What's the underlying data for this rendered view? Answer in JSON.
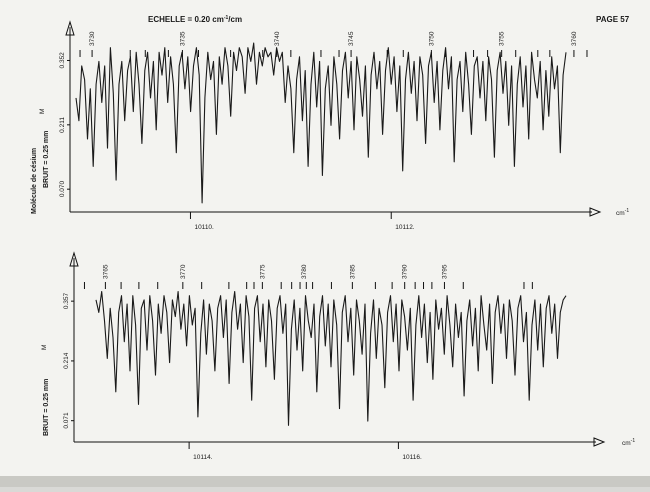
{
  "header": {
    "scale_prefix": "ECHELLE = 0.20 cm",
    "scale_exp": "-1",
    "scale_suffix": "/cm",
    "page_label": "PAGE 57"
  },
  "chart_data": [
    {
      "type": "line",
      "xlabel": "cm",
      "xlabel_sup": "-1",
      "x_ticks": [
        {
          "value": 10110.0,
          "label": "10110."
        },
        {
          "value": 10112.0,
          "label": "10112."
        }
      ],
      "xlim": [
        10108.8,
        10114.0
      ],
      "ylabel": "Molécule de césium",
      "noise_label": "BRUIT = 0.25 mm",
      "y_ticks": [
        {
          "value": 0.07,
          "label": "0.070"
        },
        {
          "value": 0.211,
          "label": "0.211"
        },
        {
          "value": 0.352,
          "label": "0.352"
        }
      ],
      "y_marker": "M",
      "ylim": [
        0.02,
        0.41
      ],
      "annotation_labels": [
        {
          "x": 10109.02,
          "text": "3730"
        },
        {
          "x": 10109.92,
          "text": "3735"
        },
        {
          "x": 10110.86,
          "text": "3740"
        },
        {
          "x": 10111.6,
          "text": "3745"
        },
        {
          "x": 10112.4,
          "text": "3750"
        },
        {
          "x": 10113.1,
          "text": "3755"
        },
        {
          "x": 10113.82,
          "text": "3760"
        }
      ],
      "line_marks": [
        10108.9,
        10109.02,
        10109.4,
        10109.55,
        10109.78,
        10109.92,
        10110.08,
        10110.4,
        10110.72,
        10110.86,
        10111.0,
        10111.3,
        10111.48,
        10111.6,
        10111.96,
        10112.12,
        10112.4,
        10112.54,
        10112.82,
        10112.96,
        10113.1,
        10113.24,
        10113.46,
        10113.58,
        10113.82,
        10113.95
      ],
      "y_samples": [
        0.27,
        0.22,
        0.34,
        0.31,
        0.18,
        0.29,
        0.12,
        0.3,
        0.35,
        0.26,
        0.34,
        0.16,
        0.38,
        0.28,
        0.09,
        0.3,
        0.35,
        0.22,
        0.33,
        0.36,
        0.24,
        0.37,
        0.3,
        0.17,
        0.33,
        0.37,
        0.27,
        0.35,
        0.2,
        0.37,
        0.32,
        0.38,
        0.26,
        0.36,
        0.3,
        0.15,
        0.34,
        0.37,
        0.29,
        0.36,
        0.24,
        0.34,
        0.38,
        0.32,
        0.04,
        0.27,
        0.37,
        0.31,
        0.35,
        0.19,
        0.36,
        0.3,
        0.38,
        0.34,
        0.23,
        0.37,
        0.33,
        0.38,
        0.36,
        0.28,
        0.38,
        0.35,
        0.39,
        0.3,
        0.37,
        0.34,
        0.38,
        0.36,
        0.37,
        0.32,
        0.38,
        0.35,
        0.37,
        0.26,
        0.34,
        0.29,
        0.15,
        0.31,
        0.36,
        0.22,
        0.33,
        0.12,
        0.3,
        0.37,
        0.25,
        0.35,
        0.1,
        0.29,
        0.34,
        0.21,
        0.36,
        0.3,
        0.18,
        0.33,
        0.37,
        0.27,
        0.35,
        0.2,
        0.36,
        0.31,
        0.23,
        0.34,
        0.14,
        0.32,
        0.37,
        0.29,
        0.35,
        0.19,
        0.33,
        0.38,
        0.3,
        0.36,
        0.24,
        0.34,
        0.11,
        0.31,
        0.37,
        0.28,
        0.35,
        0.22,
        0.36,
        0.32,
        0.17,
        0.34,
        0.37,
        0.26,
        0.35,
        0.2,
        0.33,
        0.38,
        0.29,
        0.36,
        0.13,
        0.31,
        0.35,
        0.24,
        0.37,
        0.3,
        0.19,
        0.34,
        0.36,
        0.27,
        0.35,
        0.22,
        0.36,
        0.31,
        0.14,
        0.33,
        0.37,
        0.28,
        0.35,
        0.21,
        0.34,
        0.12,
        0.3,
        0.36,
        0.25,
        0.34,
        0.18,
        0.37,
        0.31,
        0.27,
        0.35,
        0.2,
        0.33,
        0.23,
        0.36,
        0.29,
        0.34,
        0.15,
        0.32,
        0.37
      ]
    },
    {
      "type": "line",
      "xlabel": "cm",
      "xlabel_sup": "-1",
      "x_ticks": [
        {
          "value": 10114.0,
          "label": "10114."
        },
        {
          "value": 10116.0,
          "label": "10116."
        }
      ],
      "xlim": [
        10112.9,
        10117.85
      ],
      "ylabel": "",
      "noise_label": "BRUIT = 0.25 mm",
      "y_ticks": [
        {
          "value": 0.071,
          "label": "0.071"
        },
        {
          "value": 0.214,
          "label": "0.214"
        },
        {
          "value": 0.357,
          "label": "0.357"
        }
      ],
      "y_marker": "M",
      "ylim": [
        0.02,
        0.41
      ],
      "annotation_labels": [
        {
          "x": 10113.2,
          "text": "3765"
        },
        {
          "x": 10113.94,
          "text": "3770"
        },
        {
          "x": 10114.7,
          "text": "3775"
        },
        {
          "x": 10115.1,
          "text": "3780"
        },
        {
          "x": 10115.56,
          "text": "3785"
        },
        {
          "x": 10116.06,
          "text": "3790"
        },
        {
          "x": 10116.44,
          "text": "3795"
        }
      ],
      "line_marks": [
        10113.0,
        10113.2,
        10113.35,
        10113.52,
        10113.7,
        10113.94,
        10114.12,
        10114.38,
        10114.55,
        10114.62,
        10114.7,
        10114.88,
        10114.98,
        10115.06,
        10115.12,
        10115.18,
        10115.36,
        10115.56,
        10115.78,
        10115.94,
        10116.06,
        10116.16,
        10116.24,
        10116.32,
        10116.44,
        10116.62,
        10117.2,
        10117.28
      ],
      "y_samples": [
        0.36,
        0.33,
        0.38,
        0.31,
        0.22,
        0.34,
        0.27,
        0.14,
        0.33,
        0.37,
        0.26,
        0.35,
        0.19,
        0.37,
        0.3,
        0.11,
        0.34,
        0.36,
        0.24,
        0.37,
        0.31,
        0.18,
        0.35,
        0.28,
        0.37,
        0.33,
        0.21,
        0.36,
        0.32,
        0.38,
        0.29,
        0.35,
        0.25,
        0.37,
        0.3,
        0.34,
        0.08,
        0.28,
        0.36,
        0.23,
        0.35,
        0.31,
        0.19,
        0.34,
        0.37,
        0.27,
        0.36,
        0.16,
        0.33,
        0.38,
        0.29,
        0.35,
        0.21,
        0.37,
        0.32,
        0.12,
        0.34,
        0.37,
        0.26,
        0.35,
        0.2,
        0.36,
        0.31,
        0.17,
        0.34,
        0.37,
        0.28,
        0.35,
        0.06,
        0.29,
        0.36,
        0.24,
        0.34,
        0.19,
        0.37,
        0.31,
        0.27,
        0.35,
        0.14,
        0.32,
        0.37,
        0.25,
        0.35,
        0.2,
        0.36,
        0.3,
        0.1,
        0.33,
        0.37,
        0.26,
        0.34,
        0.18,
        0.36,
        0.31,
        0.23,
        0.35,
        0.07,
        0.28,
        0.36,
        0.22,
        0.34,
        0.3,
        0.15,
        0.33,
        0.37,
        0.26,
        0.35,
        0.19,
        0.36,
        0.32,
        0.24,
        0.34,
        0.12,
        0.3,
        0.37,
        0.27,
        0.35,
        0.21,
        0.33,
        0.17,
        0.36,
        0.29,
        0.34,
        0.23,
        0.37,
        0.3,
        0.2,
        0.35,
        0.27,
        0.33,
        0.13,
        0.31,
        0.36,
        0.25,
        0.34,
        0.19,
        0.37,
        0.3,
        0.24,
        0.35,
        0.16,
        0.33,
        0.37,
        0.28,
        0.35,
        0.22,
        0.36,
        0.31,
        0.18,
        0.34,
        0.37,
        0.26,
        0.33,
        0.12,
        0.3,
        0.36,
        0.24,
        0.35,
        0.2,
        0.34,
        0.37,
        0.28,
        0.35,
        0.22,
        0.33,
        0.36,
        0.37
      ]
    }
  ]
}
